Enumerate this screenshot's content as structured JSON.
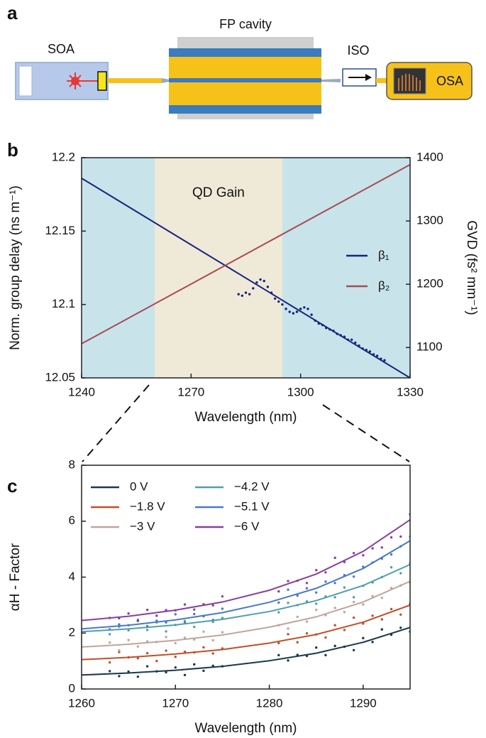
{
  "diagram": {
    "label": "a",
    "soa": "SOA",
    "cavity": "FP cavity",
    "iso": "ISO",
    "osa": "OSA"
  },
  "chart_data": [
    {
      "type": "line",
      "label": "b",
      "xlabel": "Wavelength (nm)",
      "ylabel": "Norm. group delay (ns m⁻¹)",
      "y2label": "GVD (fs² mm⁻¹)",
      "xlim": [
        1240,
        1330
      ],
      "xticks": [
        1240,
        1270,
        1300,
        1330
      ],
      "ylim": [
        12.05,
        12.2
      ],
      "yticks": [
        12.05,
        12.1,
        12.15,
        12.2
      ],
      "y2lim": [
        1052,
        1400
      ],
      "y2ticks": [
        1100,
        1200,
        1300,
        1400
      ],
      "background": "#c8e4ea",
      "shaded": {
        "x": [
          1260,
          1295
        ],
        "color": "#efe9d8",
        "label": "QD Gain"
      },
      "x": [
        1240,
        1330
      ],
      "series": [
        {
          "name": "β₁",
          "color": "#1a237e",
          "values": [
            12.186,
            12.05
          ]
        },
        {
          "name": "β₂",
          "color": "#a84a55",
          "values": [
            1106,
            1389
          ],
          "axis": "y2"
        }
      ],
      "measured": {
        "color": "#1a237e",
        "x": [
          1283,
          1284,
          1285,
          1286,
          1287,
          1288,
          1289,
          1290,
          1291,
          1292,
          1293,
          1294,
          1295,
          1296,
          1297,
          1298,
          1299,
          1300,
          1301,
          1302,
          1303,
          1304,
          1305,
          1306,
          1307,
          1308,
          1309,
          1310,
          1311,
          1312,
          1313,
          1314,
          1315,
          1316,
          1317,
          1318,
          1319,
          1320,
          1321,
          1322,
          1323
        ],
        "values": [
          12.107,
          12.106,
          12.108,
          12.107,
          12.111,
          12.115,
          12.117,
          12.116,
          12.112,
          12.108,
          12.104,
          12.102,
          12.1,
          12.097,
          12.095,
          12.094,
          12.095,
          12.097,
          12.098,
          12.097,
          12.093,
          12.089,
          12.087,
          12.086,
          12.084,
          12.083,
          12.082,
          12.08,
          12.079,
          12.078,
          12.076,
          12.076,
          12.074,
          12.072,
          12.07,
          12.069,
          12.068,
          12.066,
          12.065,
          12.063,
          12.062
        ]
      }
    },
    {
      "type": "line",
      "label": "c",
      "xlabel": "Wavelength (nm)",
      "ylabel": "αH - Factor",
      "xlim": [
        1260,
        1295
      ],
      "xticks": [
        1260,
        1270,
        1280,
        1290
      ],
      "ylim": [
        0,
        8
      ],
      "yticks": [
        0,
        2,
        4,
        6,
        8
      ],
      "x": [
        1260,
        1265,
        1270,
        1275,
        1280,
        1285,
        1290,
        1295
      ],
      "points_x": [
        1263,
        1264,
        1265,
        1266,
        1267,
        1268,
        1269,
        1270,
        1271,
        1272,
        1273,
        1274,
        1275,
        1281,
        1282,
        1283,
        1284,
        1285,
        1286,
        1287,
        1288,
        1289,
        1290,
        1291,
        1292,
        1293,
        1294,
        1295
      ],
      "series": [
        {
          "name": "0 V",
          "color": "#1b3a4b",
          "values": [
            0.5,
            0.57,
            0.67,
            0.81,
            1.01,
            1.28,
            1.67,
            2.2
          ],
          "points": [
            0.64,
            0.46,
            0.62,
            0.44,
            0.81,
            0.63,
            0.6,
            0.77,
            0.5,
            0.88,
            0.65,
            0.83,
            0.81,
            1.21,
            1.02,
            1.22,
            1.18,
            1.48,
            1.21,
            1.54,
            1.51,
            1.39,
            1.82,
            1.68,
            2.13,
            1.94,
            2.19,
            2.05
          ]
        },
        {
          "name": "−1.8 V",
          "color": "#c0502a",
          "values": [
            1.05,
            1.13,
            1.25,
            1.41,
            1.64,
            1.95,
            2.39,
            3.0
          ],
          "points": [
            0.95,
            1.32,
            1.13,
            1.1,
            1.28,
            1.0,
            1.37,
            1.15,
            1.33,
            1.31,
            1.49,
            1.27,
            1.45,
            1.64,
            1.96,
            1.67,
            1.99,
            1.95,
            1.84,
            2.28,
            2.11,
            2.55,
            2.34,
            2.62,
            2.49,
            2.86,
            2.66,
            3.05
          ]
        },
        {
          "name": "−3 V",
          "color": "#bfa69c",
          "values": [
            1.5,
            1.6,
            1.74,
            1.93,
            2.21,
            2.58,
            3.11,
            3.85
          ],
          "points": [
            1.66,
            1.38,
            1.75,
            1.52,
            1.7,
            1.68,
            1.86,
            1.64,
            1.83,
            1.77,
            2.05,
            1.74,
            2.03,
            2.28,
            2.16,
            2.58,
            2.41,
            2.83,
            2.64,
            2.9,
            2.75,
            3.11,
            3.02,
            3.32,
            3.26,
            3.61,
            3.7,
            3.8
          ]
        },
        {
          "name": "−4.2 V",
          "color": "#4fa0a8",
          "values": [
            2.05,
            2.15,
            2.29,
            2.49,
            2.77,
            3.16,
            3.7,
            4.45
          ],
          "points": [
            1.96,
            2.23,
            2.1,
            2.43,
            2.11,
            2.38,
            2.06,
            2.29,
            2.43,
            2.22,
            2.6,
            2.4,
            2.54,
            2.74,
            3.08,
            3.0,
            3.13,
            3.05,
            3.31,
            3.28,
            3.63,
            3.28,
            3.69,
            3.81,
            4.0,
            4.35,
            4.14,
            4.5
          ]
        },
        {
          "name": "−5.1 V",
          "color": "#4a78c9",
          "values": [
            2.15,
            2.28,
            2.47,
            2.73,
            3.1,
            3.6,
            4.31,
            5.3
          ],
          "points": [
            2.13,
            2.31,
            2.28,
            2.47,
            2.25,
            2.44,
            2.38,
            2.67,
            2.37,
            2.68,
            2.61,
            2.47,
            2.87,
            3.09,
            3.55,
            3.34,
            3.6,
            3.45,
            3.84,
            3.79,
            4.07,
            4.02,
            4.37,
            4.52,
            4.66,
            4.81,
            5.1,
            5.45
          ]
        },
        {
          "name": "−6 V",
          "color": "#8a3fa0",
          "values": [
            2.45,
            2.6,
            2.82,
            3.11,
            3.53,
            4.11,
            4.92,
            6.05
          ],
          "points": [
            2.54,
            2.53,
            2.7,
            2.44,
            2.83,
            2.62,
            2.82,
            2.81,
            3.02,
            2.84,
            3.03,
            2.99,
            3.31,
            3.49,
            3.86,
            3.87,
            3.79,
            4.25,
            4.17,
            4.69,
            4.54,
            4.86,
            4.78,
            5.03,
            5.06,
            5.42,
            5.45,
            6.25
          ]
        }
      ]
    }
  ]
}
